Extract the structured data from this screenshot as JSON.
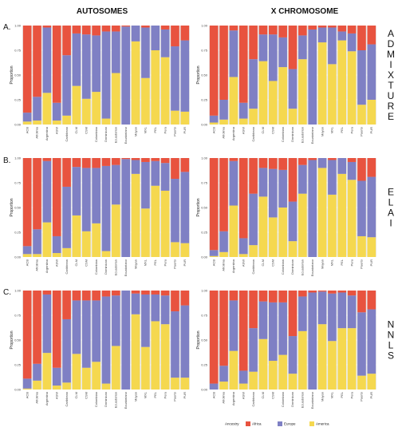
{
  "column_titles": [
    "AUTOSOMES",
    "X CHROMOSOME"
  ],
  "row_letters": [
    "A.",
    "B.",
    "C."
  ],
  "row_methods": [
    "ADMIXTURE",
    "ELAI",
    "NNLS"
  ],
  "y_axis_label": "Proportion",
  "y_ticks": [
    "0.00",
    "0.25",
    "0.50",
    "0.75",
    "1.00"
  ],
  "legend": {
    "title": "Ancestry",
    "items": [
      {
        "name": "Africa",
        "color": "#e8533f"
      },
      {
        "name": "Europe",
        "color": "#7f80c4"
      },
      {
        "name": "America",
        "color": "#f5d84f"
      }
    ]
  },
  "colors": {
    "Africa": "#e8533f",
    "Europe": "#7f80c4",
    "America": "#f5d84f",
    "background": "#ebebeb",
    "gridline": "#ffffff"
  },
  "chart_data": [
    {
      "type": "bar",
      "stacked": true,
      "title": "AUTOSOMES",
      "row": "ADMIXTURE",
      "ylabel": "Proportion",
      "ylim": [
        0,
        1
      ],
      "categories": [
        "ACB",
        "Afrolima",
        "Argentina",
        "ASW",
        "Caribbean",
        "CLM",
        "CSM",
        "Colombian",
        "Dominican",
        "Ecuadorian",
        "Ecuatoriano",
        "Mayan",
        "MXL",
        "PEL",
        "Peru",
        "Puerto",
        "PUR"
      ],
      "series": [
        {
          "name": "Africa",
          "values": [
            0.88,
            0.72,
            0.02,
            0.78,
            0.3,
            0.08,
            0.09,
            0.1,
            0.06,
            0.06,
            0.01,
            0.0,
            0.02,
            0.0,
            0.04,
            0.21,
            0.15
          ]
        },
        {
          "name": "Europe",
          "values": [
            0.09,
            0.24,
            0.66,
            0.18,
            0.61,
            0.53,
            0.65,
            0.57,
            0.88,
            0.42,
            0.99,
            0.16,
            0.51,
            0.25,
            0.28,
            0.65,
            0.72
          ]
        },
        {
          "name": "America",
          "values": [
            0.03,
            0.04,
            0.32,
            0.04,
            0.09,
            0.39,
            0.26,
            0.33,
            0.06,
            0.52,
            0.0,
            0.84,
            0.47,
            0.75,
            0.68,
            0.14,
            0.13
          ]
        }
      ]
    },
    {
      "type": "bar",
      "stacked": true,
      "title": "X CHROMOSOME",
      "row": "ADMIXTURE",
      "ylabel": "Proportion",
      "ylim": [
        0,
        1
      ],
      "categories": [
        "ACB",
        "Afrolima",
        "Argentina",
        "ASW",
        "Caribbean",
        "CLM",
        "CSM",
        "Colombian",
        "Dominican",
        "Ecuadorian",
        "Ecuatoriano",
        "Mayan",
        "MXL",
        "PEL",
        "Peru",
        "Puerto",
        "PUR"
      ],
      "series": [
        {
          "name": "Africa",
          "values": [
            0.91,
            0.75,
            0.05,
            0.78,
            0.34,
            0.09,
            0.09,
            0.12,
            0.44,
            0.1,
            0.04,
            0.02,
            0.02,
            0.06,
            0.08,
            0.25,
            0.19
          ]
        },
        {
          "name": "Europe",
          "values": [
            0.07,
            0.2,
            0.47,
            0.16,
            0.5,
            0.27,
            0.47,
            0.3,
            0.4,
            0.24,
            0.96,
            0.15,
            0.37,
            0.09,
            0.18,
            0.55,
            0.56
          ]
        },
        {
          "name": "America",
          "values": [
            0.02,
            0.05,
            0.48,
            0.06,
            0.16,
            0.64,
            0.44,
            0.58,
            0.16,
            0.66,
            0.0,
            0.83,
            0.61,
            0.85,
            0.74,
            0.2,
            0.25
          ]
        }
      ]
    },
    {
      "type": "bar",
      "stacked": true,
      "title": "AUTOSOMES",
      "row": "ELAI",
      "ylabel": "Proportion",
      "ylim": [
        0,
        1
      ],
      "categories": [
        "ACB",
        "Afrolima",
        "Argentina",
        "ASW",
        "Caribbean",
        "CLM",
        "CSM",
        "Colombian",
        "Dominican",
        "Ecuadorian",
        "Ecuatoriano",
        "Mayan",
        "MXL",
        "PEL",
        "Peru",
        "Puerto",
        "PUR"
      ],
      "series": [
        {
          "name": "Africa",
          "values": [
            0.89,
            0.72,
            0.03,
            0.79,
            0.29,
            0.09,
            0.1,
            0.1,
            0.08,
            0.07,
            0.01,
            0.02,
            0.04,
            0.03,
            0.05,
            0.21,
            0.14
          ]
        },
        {
          "name": "Europe",
          "values": [
            0.08,
            0.25,
            0.62,
            0.17,
            0.62,
            0.49,
            0.64,
            0.56,
            0.86,
            0.4,
            0.99,
            0.14,
            0.47,
            0.25,
            0.28,
            0.64,
            0.72
          ]
        },
        {
          "name": "America",
          "values": [
            0.03,
            0.03,
            0.35,
            0.04,
            0.09,
            0.42,
            0.26,
            0.34,
            0.06,
            0.53,
            0.0,
            0.84,
            0.49,
            0.72,
            0.67,
            0.15,
            0.14
          ]
        }
      ]
    },
    {
      "type": "bar",
      "stacked": true,
      "title": "X CHROMOSOME",
      "row": "ELAI",
      "ylabel": "Proportion",
      "ylim": [
        0,
        1
      ],
      "categories": [
        "ACB",
        "Afrolima",
        "Argentina",
        "ASW",
        "Caribbean",
        "CLM",
        "CSM",
        "Colombian",
        "Dominican",
        "Ecuadorian",
        "Ecuatoriano",
        "Mayan",
        "MXL",
        "PEL",
        "Peru",
        "Puerto",
        "PUR"
      ],
      "series": [
        {
          "name": "Africa",
          "values": [
            0.93,
            0.74,
            0.03,
            0.81,
            0.36,
            0.1,
            0.11,
            0.12,
            0.44,
            0.07,
            0.02,
            0.0,
            0.02,
            0.0,
            0.04,
            0.23,
            0.19
          ]
        },
        {
          "name": "Europe",
          "values": [
            0.06,
            0.21,
            0.45,
            0.16,
            0.52,
            0.29,
            0.49,
            0.38,
            0.4,
            0.29,
            0.98,
            0.1,
            0.35,
            0.16,
            0.18,
            0.56,
            0.61
          ]
        },
        {
          "name": "America",
          "values": [
            0.01,
            0.05,
            0.52,
            0.03,
            0.12,
            0.61,
            0.4,
            0.5,
            0.16,
            0.64,
            0.0,
            0.9,
            0.63,
            0.84,
            0.78,
            0.21,
            0.2
          ]
        }
      ]
    },
    {
      "type": "bar",
      "stacked": true,
      "title": "AUTOSOMES",
      "row": "NNLS",
      "ylabel": "Proportion",
      "ylim": [
        0,
        1
      ],
      "categories": [
        "ACB",
        "Afrolima",
        "Argentina",
        "ASW",
        "Caribbean",
        "CLM",
        "CSM",
        "Colombian",
        "Dominican",
        "Ecuadorian",
        "Ecuatoriano",
        "Mayan",
        "MXL",
        "PEL",
        "Peru",
        "Puerto",
        "PUR"
      ],
      "series": [
        {
          "name": "Africa",
          "values": [
            0.89,
            0.74,
            0.04,
            0.78,
            0.29,
            0.1,
            0.1,
            0.1,
            0.06,
            0.05,
            0.0,
            0.03,
            0.04,
            0.04,
            0.05,
            0.21,
            0.15
          ]
        },
        {
          "name": "Europe",
          "values": [
            0.1,
            0.17,
            0.59,
            0.18,
            0.64,
            0.54,
            0.68,
            0.62,
            0.88,
            0.51,
            1.0,
            0.21,
            0.53,
            0.27,
            0.29,
            0.67,
            0.73
          ]
        },
        {
          "name": "America",
          "values": [
            0.01,
            0.09,
            0.37,
            0.04,
            0.07,
            0.36,
            0.22,
            0.28,
            0.06,
            0.44,
            0.0,
            0.76,
            0.43,
            0.69,
            0.66,
            0.12,
            0.12
          ]
        }
      ]
    },
    {
      "type": "bar",
      "stacked": true,
      "title": "X CHROMOSOME",
      "row": "NNLS",
      "ylabel": "Proportion",
      "ylim": [
        0,
        1
      ],
      "categories": [
        "ACB",
        "Afrolima",
        "Argentina",
        "ASW",
        "Caribbean",
        "CLM",
        "CSM",
        "Colombian",
        "Dominican",
        "Ecuadorian",
        "Ecuatoriano",
        "Mayan",
        "MXL",
        "PEL",
        "Peru",
        "Puerto",
        "PUR"
      ],
      "series": [
        {
          "name": "Africa",
          "values": [
            0.94,
            0.76,
            0.1,
            0.81,
            0.38,
            0.11,
            0.12,
            0.12,
            0.46,
            0.06,
            0.02,
            0.01,
            0.03,
            0.02,
            0.05,
            0.22,
            0.19
          ]
        },
        {
          "name": "Europe",
          "values": [
            0.06,
            0.16,
            0.51,
            0.13,
            0.44,
            0.38,
            0.59,
            0.53,
            0.38,
            0.35,
            0.98,
            0.33,
            0.48,
            0.36,
            0.33,
            0.64,
            0.65
          ]
        },
        {
          "name": "America",
          "values": [
            0.0,
            0.08,
            0.39,
            0.06,
            0.18,
            0.51,
            0.29,
            0.35,
            0.16,
            0.59,
            0.0,
            0.66,
            0.49,
            0.62,
            0.62,
            0.14,
            0.16
          ]
        }
      ]
    }
  ]
}
